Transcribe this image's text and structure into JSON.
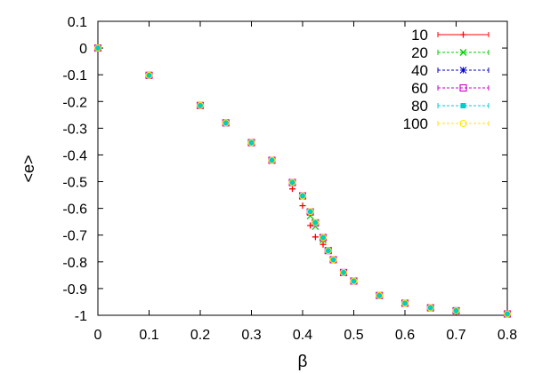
{
  "chart_data": {
    "type": "scatter",
    "title": "",
    "xlabel": "β",
    "ylabel": "<e>",
    "xlim": [
      0,
      0.8
    ],
    "ylim": [
      -1,
      0.1
    ],
    "xticks": [
      0,
      0.1,
      0.2,
      0.3,
      0.4,
      0.5,
      0.6,
      0.7,
      0.8
    ],
    "yticks": [
      0.1,
      0,
      -0.1,
      -0.2,
      -0.3,
      -0.4,
      -0.5,
      -0.6,
      -0.7,
      -0.8,
      -0.9,
      -1
    ],
    "grid": false,
    "legend_position": "top-right",
    "series": [
      {
        "name": "10",
        "color": "#ff0000",
        "marker": "plus",
        "points": [
          [
            0,
            0
          ],
          [
            0.1,
            -0.102
          ],
          [
            0.2,
            -0.215
          ],
          [
            0.25,
            -0.28
          ],
          [
            0.3,
            -0.354
          ],
          [
            0.34,
            -0.42
          ],
          [
            0.38,
            -0.527
          ],
          [
            0.4,
            -0.59
          ],
          [
            0.415,
            -0.664
          ],
          [
            0.425,
            -0.707
          ],
          [
            0.44,
            -0.735
          ],
          [
            0.45,
            -0.76
          ],
          [
            0.46,
            -0.792
          ],
          [
            0.48,
            -0.84
          ],
          [
            0.5,
            -0.872
          ],
          [
            0.55,
            -0.926
          ],
          [
            0.6,
            -0.955
          ],
          [
            0.65,
            -0.972
          ],
          [
            0.7,
            -0.983
          ],
          [
            0.8,
            -0.995
          ]
        ]
      },
      {
        "name": "20",
        "color": "#00cc00",
        "marker": "x",
        "points": [
          [
            0,
            0
          ],
          [
            0.1,
            -0.102
          ],
          [
            0.2,
            -0.215
          ],
          [
            0.25,
            -0.28
          ],
          [
            0.3,
            -0.354
          ],
          [
            0.34,
            -0.42
          ],
          [
            0.38,
            -0.505
          ],
          [
            0.4,
            -0.555
          ],
          [
            0.415,
            -0.628
          ],
          [
            0.425,
            -0.668
          ],
          [
            0.44,
            -0.718
          ],
          [
            0.45,
            -0.758
          ],
          [
            0.46,
            -0.792
          ],
          [
            0.48,
            -0.84
          ],
          [
            0.5,
            -0.872
          ],
          [
            0.55,
            -0.926
          ],
          [
            0.6,
            -0.955
          ],
          [
            0.65,
            -0.972
          ],
          [
            0.7,
            -0.983
          ],
          [
            0.8,
            -0.995
          ]
        ]
      },
      {
        "name": "40",
        "color": "#0000cc",
        "marker": "star",
        "points": [
          [
            0,
            0
          ],
          [
            0.1,
            -0.102
          ],
          [
            0.2,
            -0.215
          ],
          [
            0.25,
            -0.28
          ],
          [
            0.3,
            -0.354
          ],
          [
            0.34,
            -0.42
          ],
          [
            0.38,
            -0.503
          ],
          [
            0.4,
            -0.553
          ],
          [
            0.415,
            -0.615
          ],
          [
            0.425,
            -0.656
          ],
          [
            0.44,
            -0.71
          ],
          [
            0.45,
            -0.758
          ],
          [
            0.46,
            -0.792
          ],
          [
            0.48,
            -0.84
          ],
          [
            0.5,
            -0.872
          ],
          [
            0.55,
            -0.926
          ],
          [
            0.6,
            -0.955
          ],
          [
            0.65,
            -0.972
          ],
          [
            0.7,
            -0.983
          ],
          [
            0.8,
            -0.995
          ]
        ]
      },
      {
        "name": "60",
        "color": "#cc00cc",
        "marker": "open-square",
        "points": [
          [
            0,
            0
          ],
          [
            0.1,
            -0.102
          ],
          [
            0.2,
            -0.215
          ],
          [
            0.25,
            -0.28
          ],
          [
            0.3,
            -0.354
          ],
          [
            0.34,
            -0.42
          ],
          [
            0.38,
            -0.503
          ],
          [
            0.4,
            -0.553
          ],
          [
            0.415,
            -0.613
          ],
          [
            0.425,
            -0.654
          ],
          [
            0.44,
            -0.709
          ],
          [
            0.45,
            -0.758
          ],
          [
            0.46,
            -0.792
          ],
          [
            0.48,
            -0.84
          ],
          [
            0.5,
            -0.872
          ],
          [
            0.55,
            -0.926
          ],
          [
            0.6,
            -0.955
          ],
          [
            0.65,
            -0.972
          ],
          [
            0.7,
            -0.983
          ],
          [
            0.8,
            -0.995
          ]
        ]
      },
      {
        "name": "80",
        "color": "#00cccc",
        "marker": "filled-square",
        "points": [
          [
            0,
            0
          ],
          [
            0.1,
            -0.102
          ],
          [
            0.2,
            -0.215
          ],
          [
            0.25,
            -0.28
          ],
          [
            0.3,
            -0.354
          ],
          [
            0.34,
            -0.42
          ],
          [
            0.38,
            -0.503
          ],
          [
            0.4,
            -0.553
          ],
          [
            0.415,
            -0.612
          ],
          [
            0.425,
            -0.653
          ],
          [
            0.44,
            -0.709
          ],
          [
            0.45,
            -0.758
          ],
          [
            0.46,
            -0.792
          ],
          [
            0.48,
            -0.84
          ],
          [
            0.5,
            -0.872
          ],
          [
            0.55,
            -0.926
          ],
          [
            0.6,
            -0.955
          ],
          [
            0.65,
            -0.972
          ],
          [
            0.7,
            -0.983
          ],
          [
            0.8,
            -0.995
          ]
        ]
      },
      {
        "name": "100",
        "color": "#ffe600",
        "marker": "open-circle",
        "points": [
          [
            0,
            0
          ],
          [
            0.1,
            -0.102
          ],
          [
            0.2,
            -0.215
          ],
          [
            0.25,
            -0.28
          ],
          [
            0.3,
            -0.354
          ],
          [
            0.34,
            -0.42
          ],
          [
            0.38,
            -0.503
          ],
          [
            0.4,
            -0.553
          ],
          [
            0.415,
            -0.612
          ],
          [
            0.425,
            -0.653
          ],
          [
            0.44,
            -0.709
          ],
          [
            0.45,
            -0.758
          ],
          [
            0.46,
            -0.792
          ],
          [
            0.48,
            -0.84
          ],
          [
            0.5,
            -0.872
          ],
          [
            0.55,
            -0.926
          ],
          [
            0.6,
            -0.955
          ],
          [
            0.65,
            -0.972
          ],
          [
            0.7,
            -0.983
          ],
          [
            0.8,
            -0.995
          ]
        ]
      }
    ]
  }
}
